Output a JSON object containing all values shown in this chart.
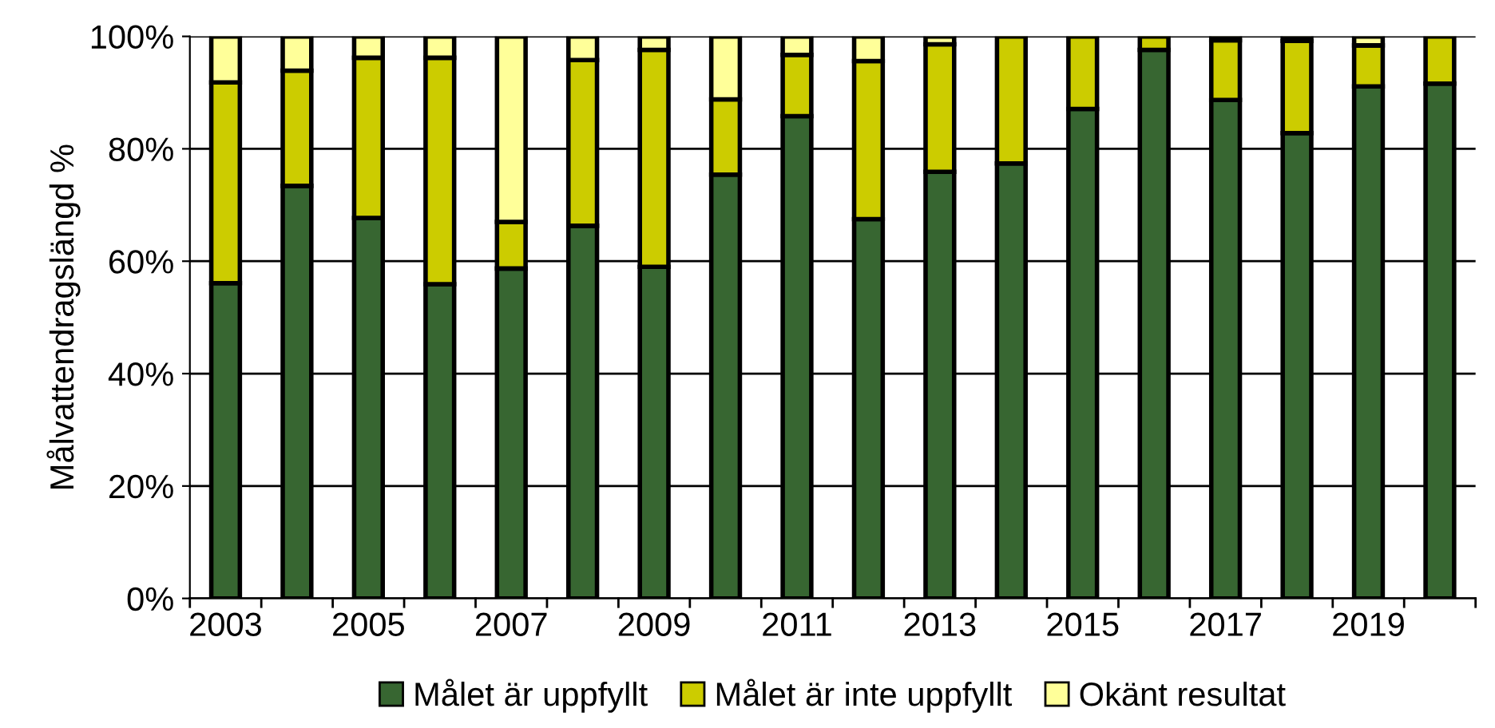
{
  "chart_data": {
    "type": "bar",
    "stacked": true,
    "ylabel": "Målvattendragslängd %",
    "categories": [
      "2003",
      null,
      "2005",
      null,
      "2007",
      null,
      "2009",
      null,
      "2011",
      null,
      "2013",
      null,
      "2015",
      null,
      "2017",
      null,
      "2019",
      null
    ],
    "series": [
      {
        "name": "Målet är uppfyllt",
        "color": "#376631",
        "values": [
          56.1,
          73.4,
          67.7,
          55.9,
          58.7,
          66.3,
          59.0,
          75.4,
          85.8,
          67.5,
          75.9,
          77.4,
          87.1,
          97.6,
          88.7,
          82.8,
          91.1,
          91.6
        ]
      },
      {
        "name": "Målet är inte uppfyllt",
        "color": "#cccc00",
        "values": [
          35.7,
          20.5,
          28.5,
          40.3,
          8.3,
          29.5,
          38.6,
          13.4,
          10.9,
          28.1,
          22.7,
          22.6,
          12.9,
          2.4,
          10.6,
          16.4,
          7.3,
          8.4
        ]
      },
      {
        "name": "Okänt resultat",
        "color": "#ffff99",
        "values": [
          8.2,
          6.1,
          3.8,
          3.8,
          33.0,
          4.2,
          2.4,
          11.2,
          3.3,
          4.4,
          1.4,
          null,
          null,
          null,
          0.7,
          0.8,
          1.6,
          null
        ]
      }
    ],
    "ylim": [
      0,
      100
    ],
    "yticks": [
      {
        "value": 0,
        "label": "0%"
      },
      {
        "value": 20,
        "label": "20%"
      },
      {
        "value": 40,
        "label": "40%"
      },
      {
        "value": 60,
        "label": "60%"
      },
      {
        "value": 80,
        "label": "80%"
      },
      {
        "value": 100,
        "label": "100%"
      }
    ],
    "grid": "y",
    "legend": "bottom"
  }
}
